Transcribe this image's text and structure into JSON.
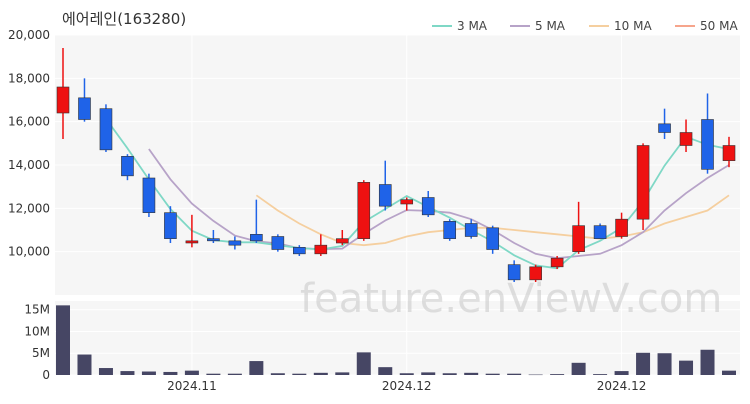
{
  "chart_data": {
    "type": "candlestick",
    "title": "에어레인(163280)",
    "watermark": "feature.enViewV.com",
    "price_ylim": [
      8000,
      20000
    ],
    "price_ticks": [
      10000,
      12000,
      14000,
      16000,
      18000,
      20000
    ],
    "price_tick_labels": [
      "10,000",
      "12,000",
      "14,000",
      "16,000",
      "18,000",
      "20,000"
    ],
    "volume_ylim": [
      0,
      17000000
    ],
    "volume_ticks": [
      0,
      5000000,
      10000000,
      15000000
    ],
    "volume_tick_labels": [
      "0",
      "5M",
      "10M",
      "15M"
    ],
    "x_tick_labels": [
      {
        "index": 6,
        "label": "2024.11"
      },
      {
        "index": 16,
        "label": "2024.12"
      },
      {
        "index": 26,
        "label": "2024.12"
      }
    ],
    "legend": [
      {
        "name": "3 MA",
        "color": "#7fd8c6"
      },
      {
        "name": "5 MA",
        "color": "#b7a3c8"
      },
      {
        "name": "10 MA",
        "color": "#f5cf9f"
      },
      {
        "name": "50 MA",
        "color": "#f6a58c"
      }
    ],
    "up_color": "#ee1111",
    "down_color": "#1f63e8",
    "volume_color": "#464664",
    "candles": [
      {
        "o": 16400,
        "h": 19400,
        "l": 15200,
        "c": 17600,
        "v": 16000000
      },
      {
        "o": 17100,
        "h": 18000,
        "l": 16000,
        "c": 16100,
        "v": 4700000
      },
      {
        "o": 16600,
        "h": 16800,
        "l": 14600,
        "c": 14700,
        "v": 1600000
      },
      {
        "o": 14400,
        "h": 14500,
        "l": 13300,
        "c": 13500,
        "v": 900000
      },
      {
        "o": 13400,
        "h": 13600,
        "l": 11600,
        "c": 11800,
        "v": 800000
      },
      {
        "o": 11800,
        "h": 12100,
        "l": 10400,
        "c": 10600,
        "v": 700000
      },
      {
        "o": 10400,
        "h": 11700,
        "l": 10200,
        "c": 10500,
        "v": 1000000
      },
      {
        "o": 10600,
        "h": 11000,
        "l": 10400,
        "c": 10500,
        "v": 300000
      },
      {
        "o": 10500,
        "h": 10700,
        "l": 10100,
        "c": 10300,
        "v": 300000
      },
      {
        "o": 10800,
        "h": 12400,
        "l": 10400,
        "c": 10500,
        "v": 3200000
      },
      {
        "o": 10700,
        "h": 10800,
        "l": 10000,
        "c": 10100,
        "v": 400000
      },
      {
        "o": 10200,
        "h": 10300,
        "l": 9800,
        "c": 9900,
        "v": 300000
      },
      {
        "o": 9900,
        "h": 10800,
        "l": 9800,
        "c": 10300,
        "v": 500000
      },
      {
        "o": 10400,
        "h": 11000,
        "l": 10300,
        "c": 10600,
        "v": 600000
      },
      {
        "o": 10600,
        "h": 13300,
        "l": 10500,
        "c": 13200,
        "v": 5200000
      },
      {
        "o": 13100,
        "h": 14200,
        "l": 11900,
        "c": 12100,
        "v": 1800000
      },
      {
        "o": 12200,
        "h": 12500,
        "l": 11900,
        "c": 12400,
        "v": 400000
      },
      {
        "o": 12500,
        "h": 12800,
        "l": 11600,
        "c": 11700,
        "v": 600000
      },
      {
        "o": 11400,
        "h": 11500,
        "l": 10500,
        "c": 10600,
        "v": 400000
      },
      {
        "o": 11300,
        "h": 11500,
        "l": 10600,
        "c": 10700,
        "v": 500000
      },
      {
        "o": 11100,
        "h": 11200,
        "l": 9900,
        "c": 10100,
        "v": 300000
      },
      {
        "o": 9400,
        "h": 9600,
        "l": 8600,
        "c": 8700,
        "v": 300000
      },
      {
        "o": 8700,
        "h": 9400,
        "l": 8600,
        "c": 9300,
        "v": 100000
      },
      {
        "o": 9300,
        "h": 9800,
        "l": 9200,
        "c": 9700,
        "v": 200000
      },
      {
        "o": 10000,
        "h": 12300,
        "l": 9900,
        "c": 11200,
        "v": 2800000
      },
      {
        "o": 11200,
        "h": 11300,
        "l": 10600,
        "c": 10600,
        "v": 200000
      },
      {
        "o": 10700,
        "h": 11800,
        "l": 10600,
        "c": 11500,
        "v": 900000
      },
      {
        "o": 11500,
        "h": 15000,
        "l": 11000,
        "c": 14900,
        "v": 5100000
      },
      {
        "o": 15900,
        "h": 16600,
        "l": 15200,
        "c": 15500,
        "v": 5000000
      },
      {
        "o": 14900,
        "h": 16100,
        "l": 14600,
        "c": 15500,
        "v": 3300000
      },
      {
        "o": 16100,
        "h": 17300,
        "l": 13600,
        "c": 13800,
        "v": 5800000
      },
      {
        "o": 14200,
        "h": 15300,
        "l": 13900,
        "c": 14900,
        "v": 1000000
      }
    ],
    "ma3": [
      null,
      null,
      16133,
      14767,
      13333,
      11967,
      10967,
      10533,
      10433,
      10433,
      10300,
      10167,
      10100,
      10267,
      11367,
      11967,
      12567,
      12067,
      11567,
      11000,
      10467,
      9833,
      9367,
      9233,
      10067,
      10500,
      11100,
      12333,
      13967,
      15300,
      14933,
      14733
    ],
    "ma5": [
      null,
      null,
      null,
      null,
      14740,
      13340,
      12220,
      11420,
      10740,
      10480,
      10380,
      10160,
      10120,
      10140,
      10820,
      11440,
      11920,
      11880,
      11800,
      11500,
      11000,
      10400,
      9900,
      9700,
      9800,
      9900,
      10300,
      10900,
      11900,
      12700,
      13400,
      14000
    ],
    "ma10": [
      null,
      null,
      null,
      null,
      null,
      null,
      null,
      null,
      null,
      12600,
      11900,
      11300,
      10800,
      10400,
      10300,
      10400,
      10700,
      10900,
      11000,
      11100,
      11100,
      11000,
      10900,
      10800,
      10700,
      10600,
      10700,
      10900,
      11300,
      11600,
      11900,
      12600
    ]
  }
}
